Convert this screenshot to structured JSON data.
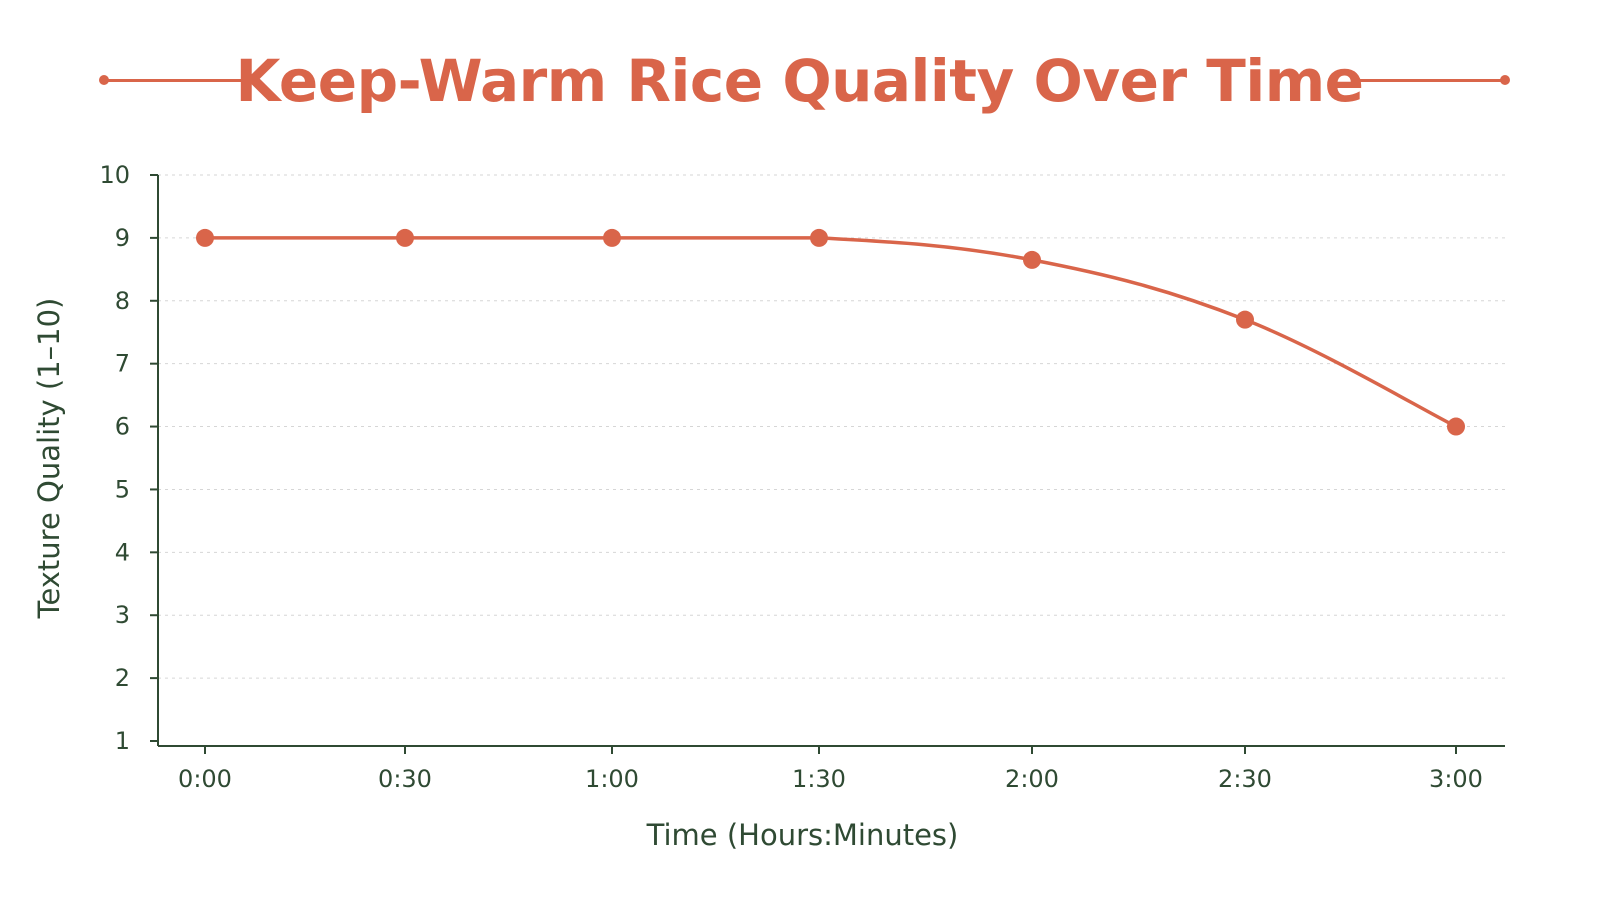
{
  "chart_data": {
    "type": "line",
    "title": "Keep-Warm Rice Quality Over Time",
    "xlabel": "Time (Hours:Minutes)",
    "ylabel": "Texture Quality (1–10)",
    "categories": [
      "0:00",
      "0:30",
      "1:00",
      "1:30",
      "2:00",
      "2:30",
      "3:00"
    ],
    "series": [
      {
        "values": [
          9,
          9,
          9,
          9,
          8.65,
          7.7,
          6.0
        ]
      }
    ],
    "y_ticks": [
      "1",
      "2",
      "3",
      "4",
      "5",
      "6",
      "7",
      "8",
      "9",
      "10"
    ],
    "ylim": [
      1,
      10
    ],
    "grid": "horizontal dotted",
    "line_smooth": true
  },
  "colors": {
    "title": "#d9654a",
    "series": "#d9654a",
    "axis": "#2f4a33",
    "grid": "#d6d6d6"
  }
}
